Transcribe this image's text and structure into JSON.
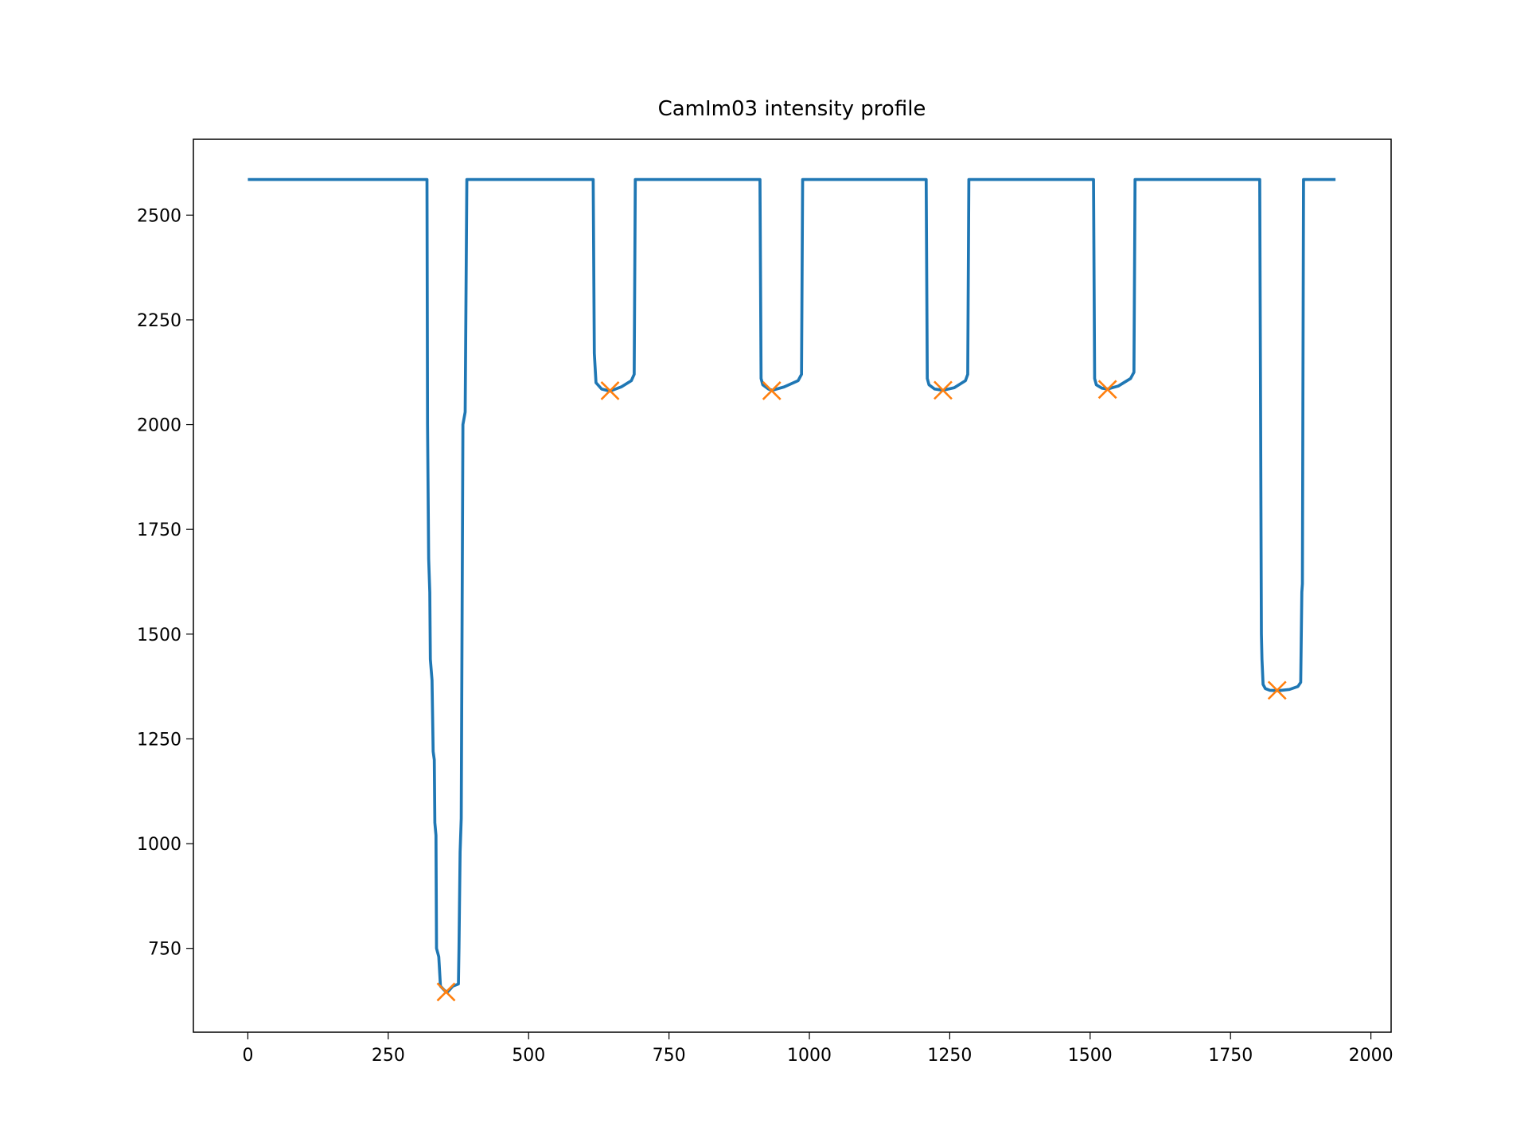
{
  "chart_data": {
    "type": "line",
    "title": "CamIm03 intensity profile",
    "xlim": [
      -97,
      2036
    ],
    "ylim": [
      550,
      2681
    ],
    "xticks": [
      0,
      250,
      500,
      750,
      1000,
      1250,
      1500,
      1750,
      2000
    ],
    "yticks": [
      750,
      1000,
      1250,
      1500,
      1750,
      2000,
      2250,
      2500
    ],
    "line": {
      "color": "#1f77b4",
      "x": [
        0,
        319,
        320,
        322,
        324,
        325,
        328,
        330,
        332,
        333,
        335,
        336,
        340,
        343,
        350,
        355,
        365,
        375,
        376,
        378,
        380,
        383,
        387,
        390,
        615,
        617,
        620,
        630,
        645,
        665,
        683,
        688,
        690,
        912,
        914,
        917,
        927,
        934,
        955,
        980,
        986,
        988,
        1208,
        1210,
        1213,
        1223,
        1238,
        1258,
        1278,
        1282,
        1284,
        1506,
        1508,
        1511,
        1521,
        1531,
        1550,
        1572,
        1578,
        1580,
        1802,
        1805,
        1806,
        1808,
        1812,
        1820,
        1835,
        1855,
        1870,
        1875,
        1877,
        1878,
        1880,
        1937
      ],
      "values": [
        2585,
        2585,
        2000,
        1680,
        1600,
        1440,
        1390,
        1220,
        1200,
        1050,
        1020,
        750,
        730,
        660,
        650,
        645,
        660,
        665,
        750,
        980,
        1060,
        2000,
        2030,
        2585,
        2585,
        2170,
        2100,
        2085,
        2080,
        2090,
        2105,
        2120,
        2585,
        2585,
        2110,
        2095,
        2085,
        2082,
        2090,
        2105,
        2120,
        2585,
        2585,
        2110,
        2095,
        2085,
        2082,
        2088,
        2105,
        2120,
        2585,
        2585,
        2110,
        2095,
        2087,
        2085,
        2092,
        2110,
        2125,
        2585,
        2585,
        1500,
        1440,
        1380,
        1370,
        1366,
        1365,
        1368,
        1375,
        1385,
        1600,
        1620,
        2585,
        2585
      ]
    },
    "peaks": {
      "color": "#ff7f0e",
      "marker": "x",
      "x": [
        353,
        645,
        933,
        1238,
        1531,
        1833
      ],
      "values": [
        646,
        2081,
        2081,
        2082,
        2084,
        1366
      ]
    }
  }
}
